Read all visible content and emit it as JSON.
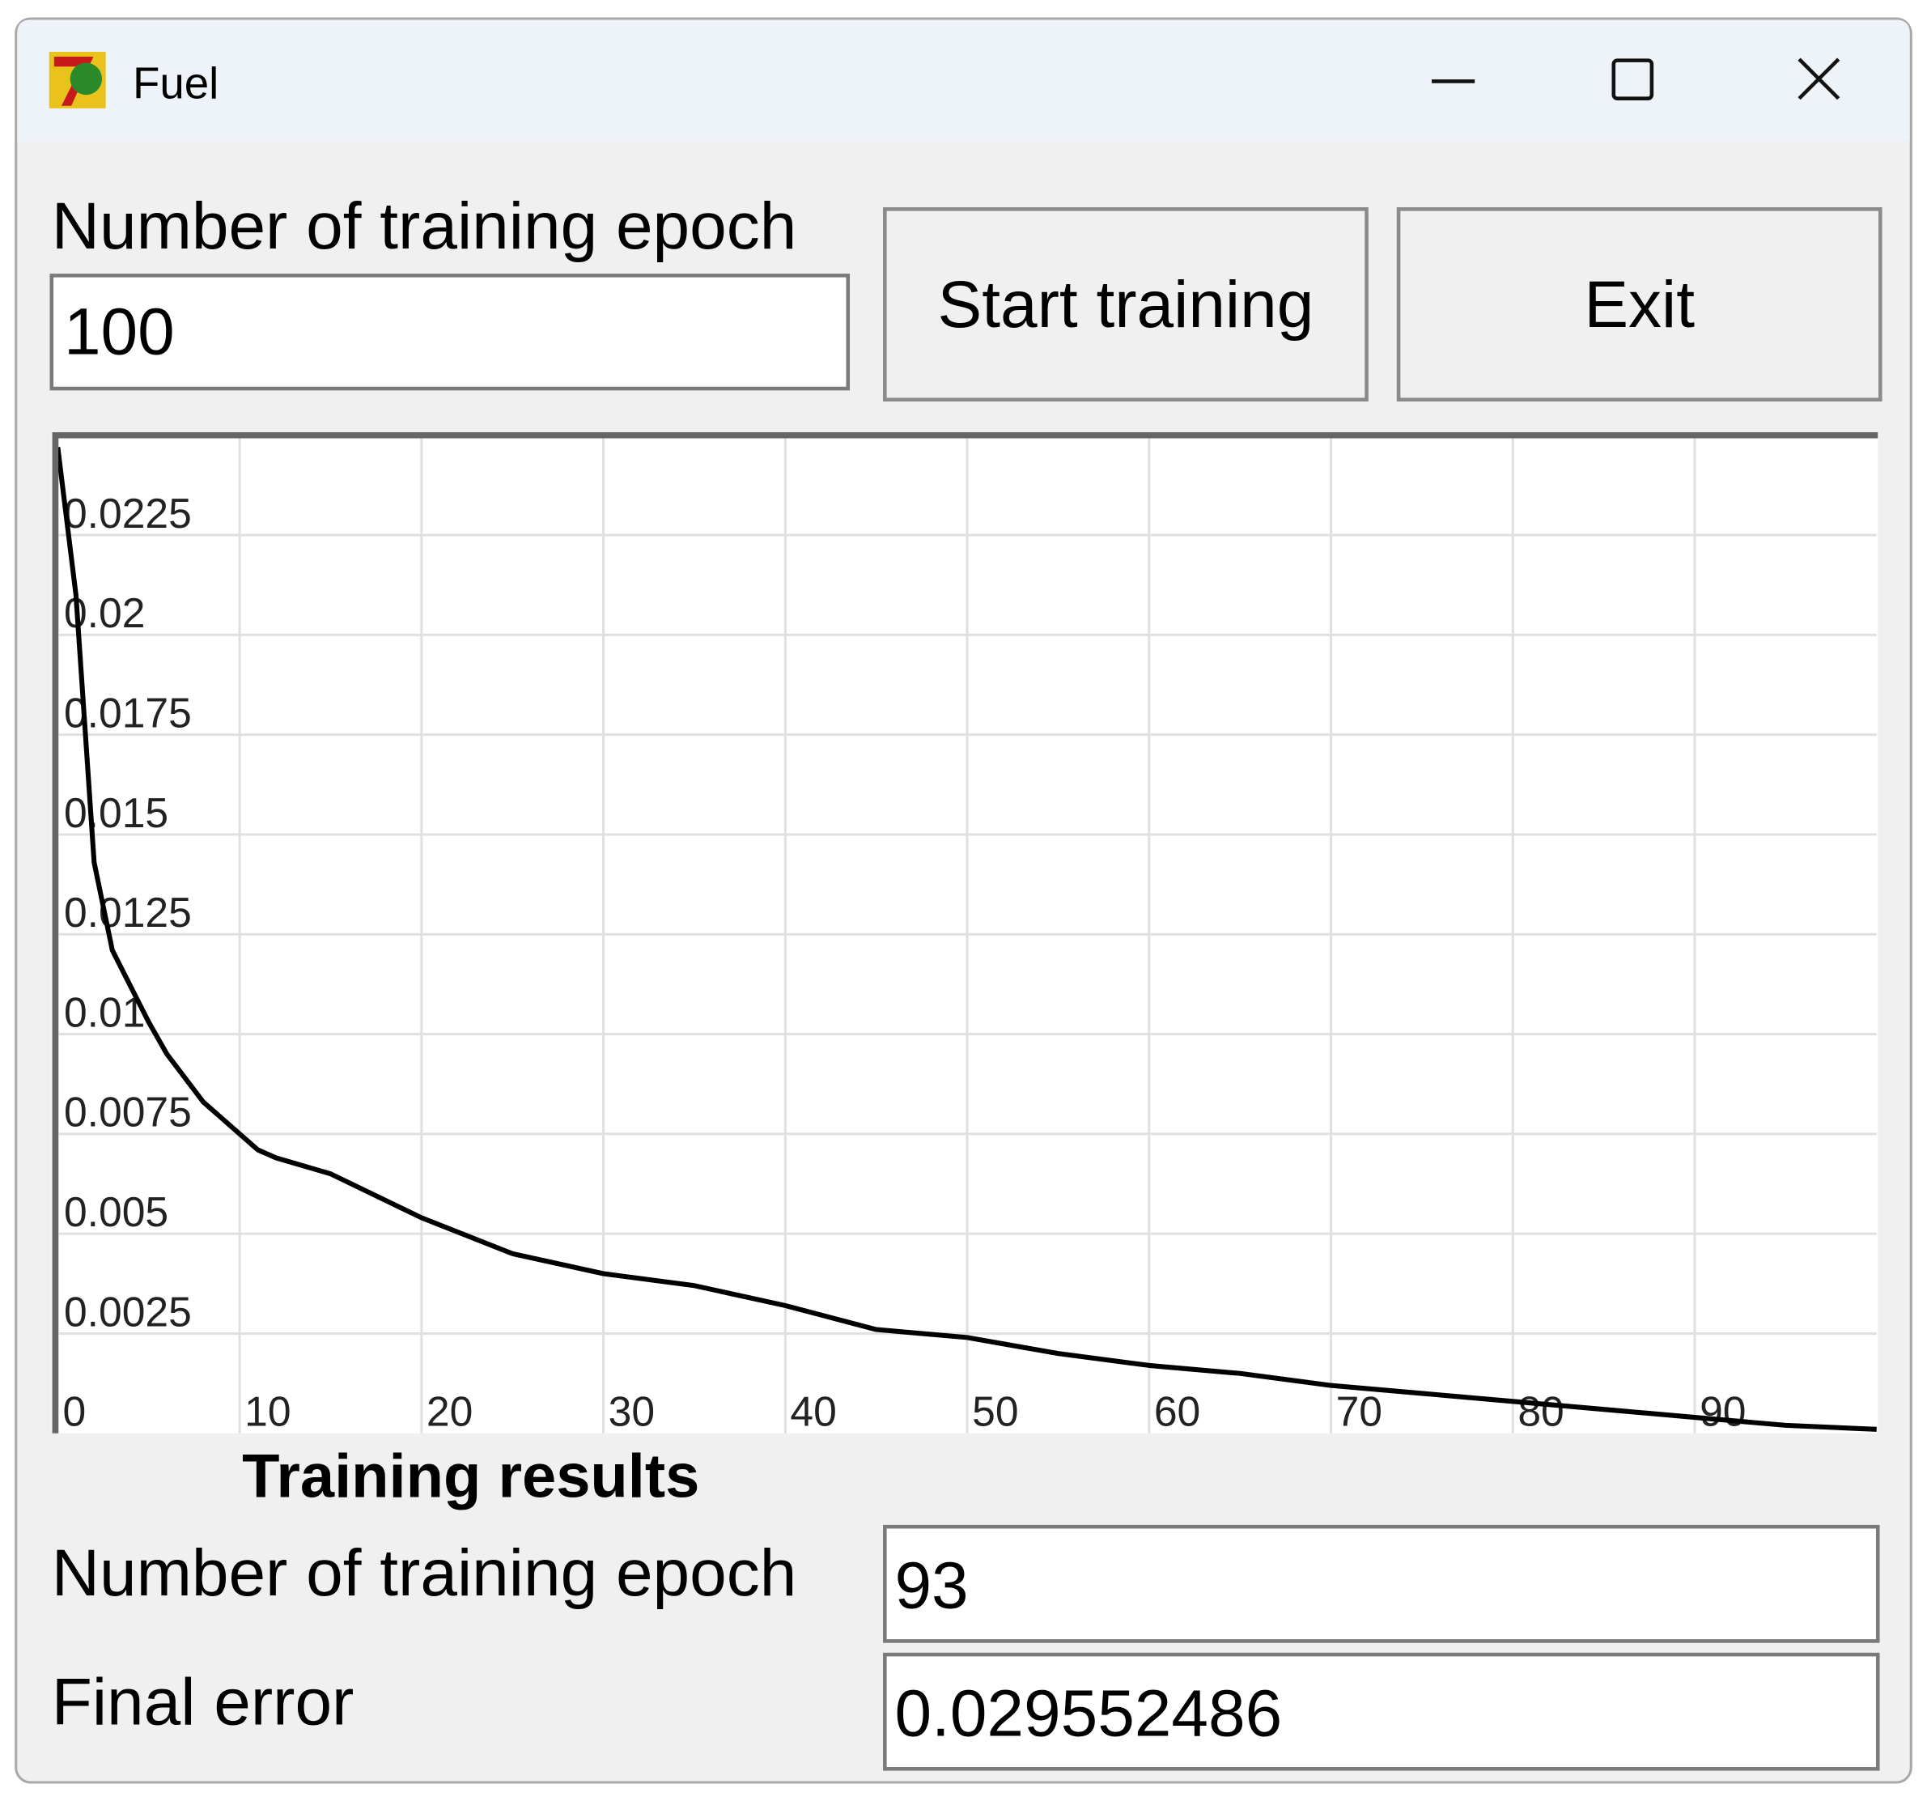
{
  "window": {
    "title": "Fuel"
  },
  "form": {
    "epochs_label": "Number of training epoch",
    "epochs_input": "100",
    "start_button": "Start training",
    "exit_button": "Exit"
  },
  "chart_data": {
    "type": "line",
    "x": [
      0,
      1,
      2,
      3,
      4,
      5,
      6,
      7,
      8,
      9,
      10,
      11,
      12,
      15,
      20,
      25,
      30,
      35,
      40,
      45,
      50,
      55,
      60,
      65,
      70,
      75,
      80,
      85,
      90,
      95,
      100
    ],
    "values": [
      0.0247,
      0.021,
      0.0143,
      0.0121,
      0.0112,
      0.0103,
      0.0095,
      0.0089,
      0.0083,
      0.0079,
      0.0075,
      0.0071,
      0.0069,
      0.0065,
      0.0054,
      0.0045,
      0.004,
      0.0037,
      0.0032,
      0.0026,
      0.0024,
      0.002,
      0.0017,
      0.0015,
      0.0012,
      0.001,
      0.0008,
      0.0006,
      0.0004,
      0.0002,
      0.0001
    ],
    "color": "#000000",
    "xlim": [
      0,
      100
    ],
    "xticks": [
      0,
      10,
      20,
      30,
      40,
      50,
      60,
      70,
      80,
      90
    ],
    "ylim": [
      0,
      0.025
    ],
    "yticks": [
      0.0025,
      0.005,
      0.0075,
      0.01,
      0.0125,
      0.015,
      0.0175,
      0.02,
      0.0225
    ],
    "grid": true
  },
  "results": {
    "title": "Training results",
    "epochs_label": "Number of training epoch",
    "epochs_value": "93",
    "error_label": "Final error",
    "error_value": "0.029552486"
  }
}
